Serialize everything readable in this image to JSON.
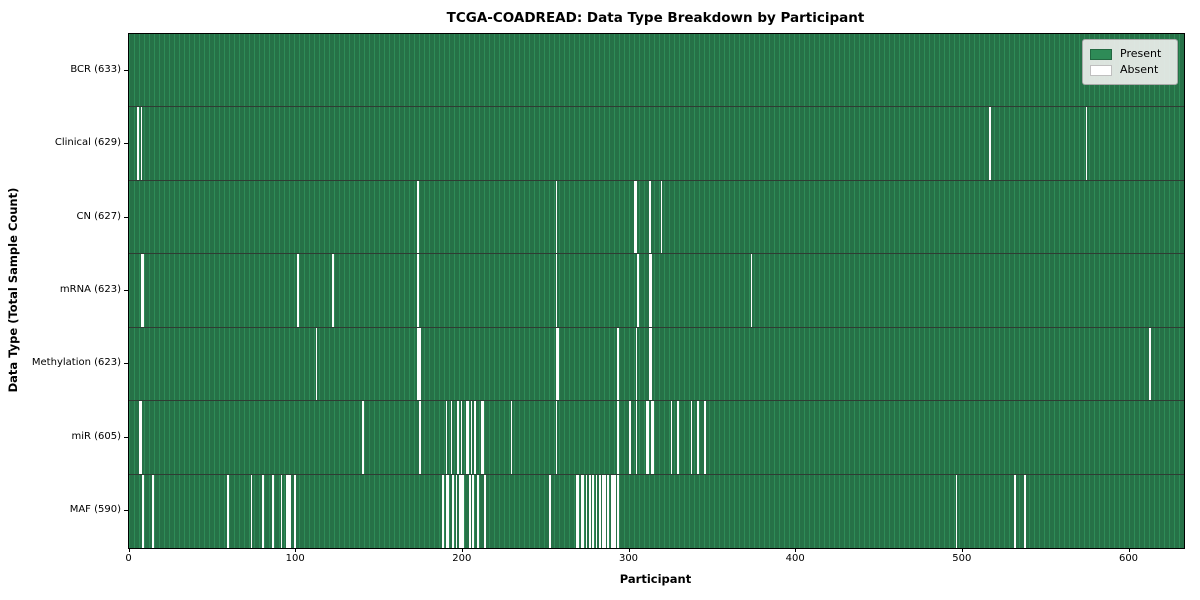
{
  "title": "TCGA-COADREAD: Data Type Breakdown by Participant",
  "colors": {
    "present": "#2e8b57",
    "present_edge": "#1d5737",
    "absent": "#fdfdfd",
    "spine": "#000000",
    "legend_bg": "#eceeec",
    "legend_border": "#a9a9a9"
  },
  "chart_data": {
    "type": "heatmap",
    "title": "TCGA-COADREAD: Data Type Breakdown by Participant",
    "xlabel": "Participant",
    "ylabel": "Data Type (Total Sample Count)",
    "x_ticks": [
      0,
      100,
      200,
      300,
      400,
      500,
      600
    ],
    "xlim": [
      0,
      633
    ],
    "n_participants": 633,
    "legend": [
      {
        "label": "Present",
        "color": "#2e8b57"
      },
      {
        "label": "Absent",
        "color": "#ffffff"
      }
    ],
    "legend_position": "upper right",
    "rows": [
      {
        "label": "BCR (633)",
        "data_type": "BCR",
        "total": 633,
        "absent_participants": []
      },
      {
        "label": "Clinical (629)",
        "data_type": "Clinical",
        "total": 629,
        "absent_participants": [
          5,
          7,
          516,
          574
        ]
      },
      {
        "label": "CN (627)",
        "data_type": "CN",
        "total": 627,
        "absent_participants": [
          173,
          256,
          303,
          304,
          312,
          319
        ]
      },
      {
        "label": "mRNA (623)",
        "data_type": "mRNA",
        "total": 623,
        "absent_participants": [
          7,
          8,
          101,
          122,
          173,
          256,
          305,
          312,
          313,
          373
        ]
      },
      {
        "label": "Methylation (623)",
        "data_type": "Methylation",
        "total": 623,
        "absent_participants": [
          112,
          173,
          174,
          256,
          257,
          293,
          304,
          312,
          313,
          612
        ]
      },
      {
        "label": "miR (605)",
        "data_type": "miR",
        "total": 605,
        "absent_participants": [
          6,
          7,
          140,
          174,
          190,
          193,
          197,
          199,
          202,
          203,
          205,
          207,
          211,
          212,
          229,
          256,
          293,
          300,
          304,
          310,
          311,
          313,
          314,
          325,
          329,
          337,
          341,
          345
        ]
      },
      {
        "label": "MAF (590)",
        "data_type": "MAF",
        "total": 590,
        "absent_participants": [
          8,
          14,
          59,
          73,
          80,
          86,
          91,
          94,
          95,
          96,
          99,
          188,
          190,
          191,
          194,
          196,
          198,
          199,
          200,
          204,
          206,
          209,
          213,
          252,
          268,
          269,
          271,
          272,
          274,
          276,
          278,
          280,
          282,
          284,
          285,
          287,
          289,
          290,
          291,
          293,
          496,
          531,
          537
        ]
      }
    ]
  }
}
